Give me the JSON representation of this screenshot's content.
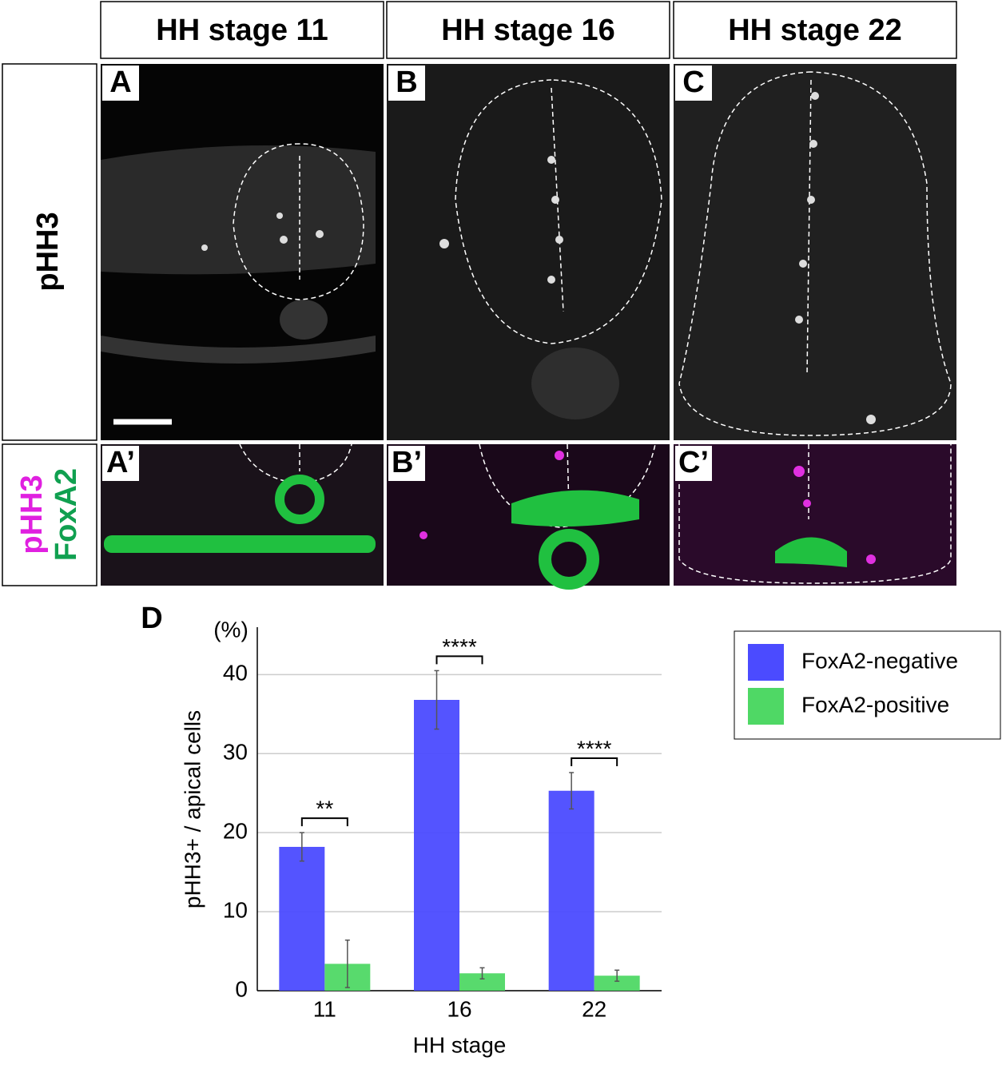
{
  "panels": {
    "headers": [
      "HH stage 11",
      "HH stage 16",
      "HH stage 22"
    ],
    "row_labels": [
      {
        "lines": [
          "pHH3"
        ]
      },
      {
        "lines": [
          "pHH3",
          "FoxA2"
        ]
      }
    ],
    "letters": [
      "A",
      "B",
      "C",
      "A’",
      "B’",
      "C’"
    ]
  },
  "chart_data": {
    "type": "bar",
    "panel_letter": "D",
    "unit": "(%)",
    "x_label": "HH stage",
    "y_label": "pHH3+ / apical cells",
    "categories": [
      "11",
      "16",
      "22"
    ],
    "series": [
      {
        "name": "FoxA2-negative",
        "color": "#4b4bff",
        "values": [
          18.2,
          36.8,
          25.3
        ],
        "errors": [
          1.8,
          3.7,
          2.3
        ]
      },
      {
        "name": "FoxA2-positive",
        "color": "#4fd865",
        "values": [
          3.4,
          2.2,
          1.9
        ],
        "errors": [
          3.0,
          0.7,
          0.7
        ]
      }
    ],
    "significance": [
      "**",
      "****",
      "****"
    ],
    "ylim": [
      0,
      46
    ],
    "yticks": [
      0,
      10,
      20,
      30,
      40
    ],
    "grid": true,
    "legend": "right"
  }
}
